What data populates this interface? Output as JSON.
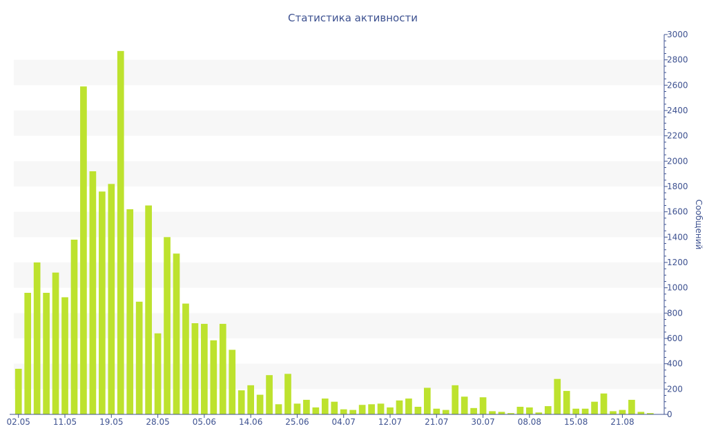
{
  "chart_data": {
    "type": "bar",
    "title": "Статистика активности",
    "ylabel": "Сообщений",
    "xlabel": "",
    "ylim": [
      0,
      3000
    ],
    "y_ticks": [
      "0",
      "200",
      "400",
      "600",
      "800",
      "1000",
      "1200",
      "1400",
      "1600",
      "1800",
      "2000",
      "2200",
      "2400",
      "2600",
      "2800",
      "3000"
    ],
    "x_tick_labels": [
      "02.05",
      "11.05",
      "19.05",
      "28.05",
      "05.06",
      "14.06",
      "25.06",
      "04.07",
      "12.07",
      "21.07",
      "30.07",
      "08.08",
      "15.08",
      "21.08"
    ],
    "x_tick_index": [
      0,
      5,
      10,
      15,
      20,
      25,
      30,
      35,
      40,
      45,
      50,
      55,
      60,
      65
    ],
    "grid": "horizontal alternating bands",
    "y_axis_position": "right",
    "bar_color": "#bde22e",
    "values": [
      360,
      960,
      1200,
      960,
      1120,
      925,
      1380,
      2590,
      1920,
      1760,
      1820,
      2870,
      1620,
      890,
      1650,
      640,
      1400,
      1270,
      875,
      720,
      715,
      585,
      715,
      510,
      190,
      230,
      155,
      310,
      80,
      320,
      85,
      115,
      55,
      125,
      100,
      40,
      35,
      75,
      80,
      85,
      55,
      110,
      125,
      60,
      210,
      45,
      35,
      230,
      140,
      50,
      135,
      25,
      20,
      10,
      60,
      55,
      15,
      65,
      280,
      185,
      45,
      45,
      100,
      165,
      25,
      35,
      115,
      20,
      10,
      0
    ]
  },
  "colors": {
    "text": "#3d5190",
    "band": "#f7f7f7",
    "axis": "#3d5190"
  }
}
